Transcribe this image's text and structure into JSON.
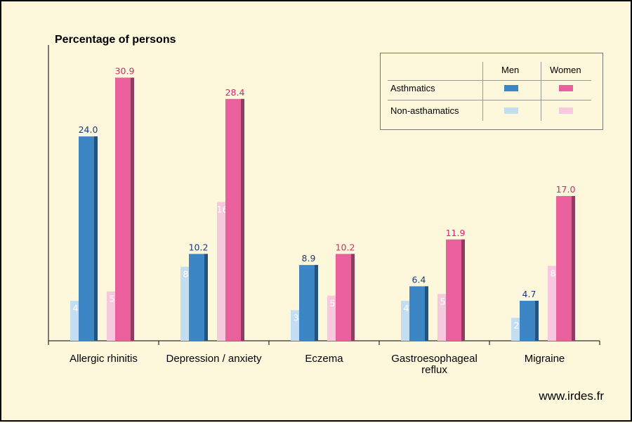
{
  "chart_data": {
    "type": "bar",
    "ylabel": "Percentage of persons",
    "categories": [
      "Allergic rhinitis",
      "Depression / anxiety",
      "Eczema",
      "Gastroesophageal reflux",
      "Migraine"
    ],
    "category_lines": [
      [
        "Allergic rhinitis"
      ],
      [
        "Depression / anxiety"
      ],
      [
        "Eczema"
      ],
      [
        "Gastroesophageal",
        "reflux"
      ],
      [
        "Migraine"
      ]
    ],
    "series": [
      {
        "name": "Non-asthamatics Men",
        "color": "#c3def1",
        "label_color": "#ffffff",
        "values": [
          4.7,
          8.7,
          3.6,
          4.7,
          2.7
        ]
      },
      {
        "name": "Asthmatics Men",
        "color": "#3d86c6",
        "label_color": "#1a3a7a",
        "values": [
          24.0,
          10.2,
          8.9,
          6.4,
          4.7
        ]
      },
      {
        "name": "Non-asthamatics Women",
        "color": "#f6c9de",
        "label_color": "#ffffff",
        "values": [
          5.8,
          16.3,
          5.3,
          5.5,
          8.8
        ]
      },
      {
        "name": "Asthmatics Women",
        "color": "#e9609c",
        "label_color": "#d6246b",
        "values": [
          30.9,
          28.4,
          10.2,
          11.9,
          17.0
        ]
      }
    ],
    "ylim": [
      0,
      35
    ],
    "grid": false
  },
  "legend": {
    "col_headers": [
      "Men",
      "Women"
    ],
    "rows": [
      {
        "label": "Asthmatics",
        "men_color": "#3d86c6",
        "women_color": "#e9609c"
      },
      {
        "label": "Non-asthamatics",
        "men_color": "#c3def1",
        "women_color": "#f6c9de"
      }
    ]
  },
  "footer": "www.irdes.fr"
}
